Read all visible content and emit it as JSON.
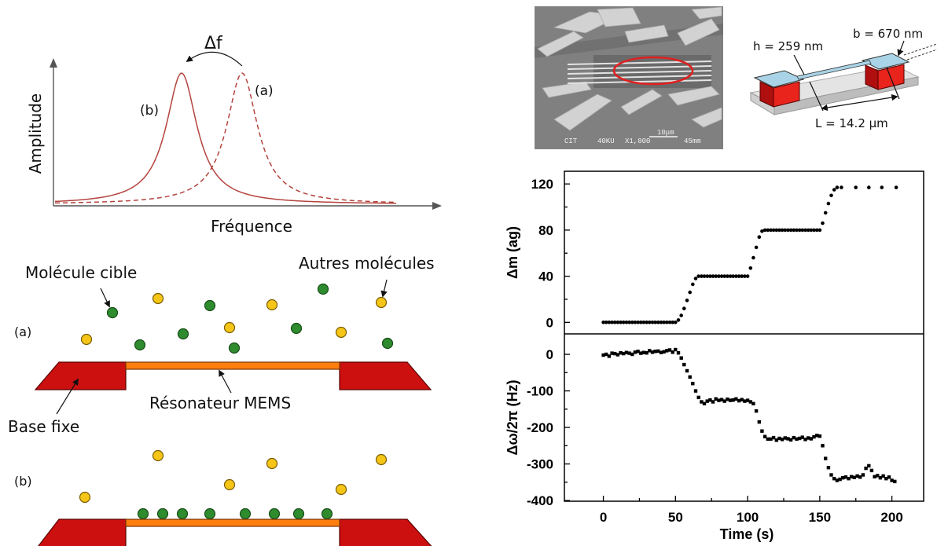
{
  "resonance_diagram": {
    "ylabel": "Amplitude",
    "xlabel": "Fréquence",
    "shift_label": "Δf",
    "curve_a_label": "(a)",
    "curve_b_label": "(b)",
    "curve_color": "#b4443e"
  },
  "schematic": {
    "target_label": "Molécule cible",
    "others_label": "Autres molécules",
    "state_a_label": "(a)",
    "state_b_label": "(b)",
    "resonator_label": "Résonateur MEMS",
    "base_label": "Base fixe",
    "target_color": "#2e8b2e",
    "other_color": "#f5c518",
    "base_color": "#cc1010",
    "beam_color": "#ff7f0e"
  },
  "sem_image": {
    "overlay_text": [
      "CIT",
      "40KU",
      "X1,800",
      "45mm"
    ],
    "scale_bar_label": "10μm",
    "highlight_color": "#e02020"
  },
  "device_schematic": {
    "thickness_label": "h = 259 nm",
    "width_label": "b = 670 nm",
    "length_label": "L = 14.2 μm"
  },
  "chart_data": {
    "type": "scatter",
    "xlabel": "Time (s)",
    "xlim": [
      -27,
      222
    ],
    "xticks": [
      0,
      50,
      100,
      150,
      200
    ],
    "panels": [
      {
        "ylabel": "Δm (ag)",
        "ylim": [
          -10,
          131
        ],
        "yticks": [
          0,
          40,
          80,
          120
        ],
        "series": [
          {
            "marker": "circle",
            "x": [
              0,
              2,
              4,
              6,
              8,
              10,
              12,
              14,
              16,
              18,
              20,
              22,
              24,
              26,
              28,
              30,
              32,
              34,
              36,
              38,
              40,
              42,
              44,
              46,
              48,
              50,
              52,
              54,
              56,
              58,
              60,
              62,
              64,
              66,
              68,
              70,
              72,
              74,
              76,
              78,
              80,
              82,
              84,
              86,
              88,
              90,
              92,
              94,
              96,
              98,
              100,
              102,
              104,
              106,
              108,
              110,
              112,
              114,
              116,
              118,
              120,
              122,
              124,
              126,
              128,
              130,
              132,
              134,
              136,
              138,
              140,
              142,
              144,
              146,
              148,
              150,
              152,
              154,
              156,
              158,
              160,
              162,
              165,
              175,
              184,
              193,
              203
            ],
            "y": [
              0,
              0,
              0,
              0,
              0,
              0,
              0,
              0,
              0,
              0,
              0,
              0,
              0,
              0,
              0,
              0,
              0,
              0,
              0,
              0,
              0,
              0,
              0,
              0,
              0,
              0,
              2,
              6,
              12,
              19,
              26,
              33,
              38,
              40,
              40,
              40,
              40,
              40,
              40,
              40,
              40,
              40,
              40,
              40,
              40,
              40,
              40,
              40,
              40,
              40,
              40,
              47,
              56,
              65,
              74,
              79,
              80,
              80,
              80,
              80,
              80,
              80,
              80,
              80,
              80,
              80,
              80,
              80,
              80,
              80,
              80,
              80,
              80,
              80,
              80,
              80,
              86,
              95,
              103,
              110,
              115,
              117,
              117,
              117,
              117,
              117,
              117
            ]
          }
        ]
      },
      {
        "ylabel": "Δω/2π (Hz)",
        "ylim": [
          -402,
          56
        ],
        "yticks": [
          0,
          -100,
          -200,
          -300,
          -400
        ],
        "series": [
          {
            "marker": "square",
            "x": [
              0,
              2,
              4,
              6,
              8,
              10,
              12,
              14,
              16,
              18,
              20,
              22,
              24,
              26,
              28,
              30,
              32,
              34,
              36,
              38,
              40,
              42,
              44,
              46,
              48,
              50,
              52,
              54,
              56,
              58,
              60,
              62,
              64,
              66,
              68,
              70,
              72,
              74,
              76,
              78,
              80,
              82,
              84,
              86,
              88,
              90,
              92,
              94,
              96,
              98,
              100,
              102,
              104,
              106,
              108,
              110,
              112,
              114,
              116,
              118,
              120,
              122,
              124,
              126,
              128,
              130,
              132,
              134,
              136,
              138,
              140,
              142,
              144,
              146,
              148,
              150,
              152,
              154,
              156,
              158,
              160,
              162,
              164,
              166,
              168,
              170,
              172,
              174,
              176,
              178,
              180,
              182,
              184,
              186,
              188,
              190,
              192,
              194,
              196,
              198,
              200,
              202
            ],
            "y": [
              -2,
              0,
              -5,
              3,
              2,
              -1,
              4,
              2,
              5,
              3,
              0,
              6,
              8,
              3,
              5,
              4,
              10,
              6,
              8,
              9,
              5,
              7,
              10,
              12,
              6,
              13,
              4,
              -10,
              -28,
              -45,
              -62,
              -80,
              -100,
              -118,
              -130,
              -135,
              -128,
              -125,
              -130,
              -122,
              -126,
              -124,
              -128,
              -123,
              -126,
              -125,
              -122,
              -127,
              -124,
              -128,
              -126,
              -130,
              -135,
              -155,
              -185,
              -210,
              -225,
              -232,
              -232,
              -228,
              -235,
              -230,
              -233,
              -229,
              -231,
              -234,
              -228,
              -232,
              -230,
              -227,
              -233,
              -229,
              -231,
              -226,
              -222,
              -224,
              -250,
              -285,
              -310,
              -330,
              -340,
              -345,
              -342,
              -338,
              -336,
              -340,
              -335,
              -337,
              -333,
              -336,
              -330,
              -312,
              -305,
              -318,
              -335,
              -332,
              -338,
              -333,
              -340,
              -336,
              -345,
              -348
            ]
          }
        ]
      }
    ]
  }
}
